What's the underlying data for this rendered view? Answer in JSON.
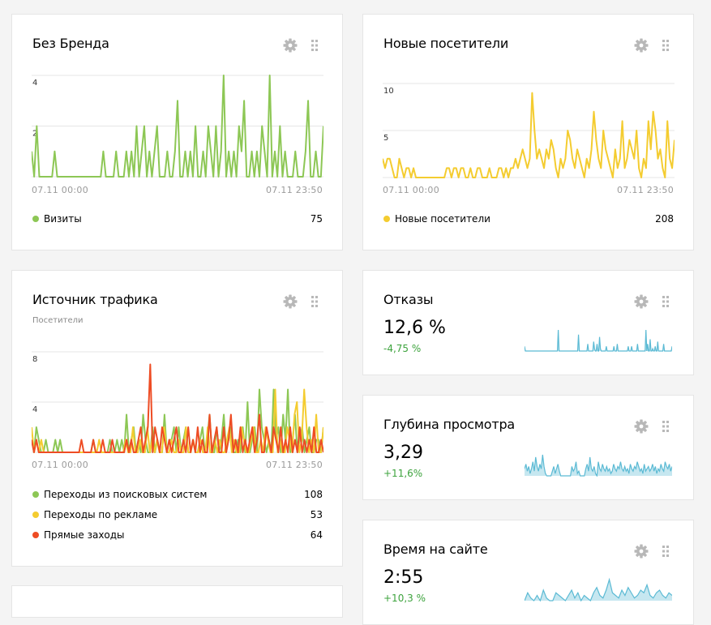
{
  "colors": {
    "green": "#8dc755",
    "yellow": "#f4cc30",
    "red": "#ee4c24",
    "blue": "#5bbad4",
    "delta_green": "#3da33d"
  },
  "icons": [
    "gear-icon",
    "drag-handle-icon"
  ],
  "widgets": {
    "brand": {
      "title": "Без Бренда",
      "x_start": "07.11 00:00",
      "x_end": "07.11 23:50",
      "legend": [
        {
          "label": "Визиты",
          "value": "75"
        }
      ]
    },
    "new_visitors": {
      "title": "Новые посетители",
      "x_start": "07.11 00:00",
      "x_end": "07.11 23:50",
      "legend": [
        {
          "label": "Новые посетители",
          "value": "208"
        }
      ]
    },
    "traffic": {
      "title": "Источник трафика",
      "subtitle": "Посетители",
      "x_start": "07.11 00:00",
      "x_end": "07.11 23:50",
      "legend": [
        {
          "label": "Переходы из поисковых систем",
          "value": "108"
        },
        {
          "label": "Переходы по рекламе",
          "value": "53"
        },
        {
          "label": "Прямые заходы",
          "value": "64"
        }
      ]
    },
    "bounce": {
      "title": "Отказы",
      "value": "12,6 %",
      "delta": "-4,75 %"
    },
    "depth": {
      "title": "Глубина просмотра",
      "value": "3,29",
      "delta": "+11,6%"
    },
    "time": {
      "title": "Время на сайте",
      "value": "2:55",
      "delta": "+10,3 %"
    }
  },
  "chart_data": [
    {
      "type": "line",
      "ylim": [
        0,
        4
      ],
      "yticks": [
        "2",
        "4"
      ],
      "x_labels": [
        "07.11 00:00",
        "07.11 23:50"
      ],
      "series": [
        {
          "name": "Визиты",
          "color": "#8dc755",
          "values": [
            1,
            0,
            2,
            0,
            0,
            0,
            0,
            0,
            0,
            1,
            0,
            0,
            0,
            0,
            0,
            0,
            0,
            0,
            0,
            0,
            0,
            0,
            0,
            0,
            0,
            0,
            0,
            0,
            1,
            0,
            0,
            0,
            0,
            1,
            0,
            0,
            0,
            1,
            0,
            1,
            0,
            2,
            0,
            1,
            2,
            0,
            1,
            0,
            1,
            2,
            0,
            0,
            0,
            1,
            0,
            0,
            1,
            3,
            0,
            0,
            1,
            0,
            1,
            0,
            2,
            0,
            0,
            1,
            0,
            2,
            1,
            0,
            2,
            0,
            1,
            4,
            0,
            1,
            0,
            1,
            0,
            2,
            1,
            3,
            0,
            0,
            1,
            0,
            1,
            0,
            2,
            1,
            0,
            4,
            0,
            1,
            0,
            2,
            0,
            1,
            0,
            0,
            0,
            1,
            0,
            0,
            0,
            1,
            3,
            0,
            0,
            1,
            0,
            0,
            2
          ]
        }
      ]
    },
    {
      "type": "line",
      "ylim": [
        0,
        10
      ],
      "yticks": [
        "5",
        "10"
      ],
      "x_labels": [
        "07.11 00:00",
        "07.11 23:50"
      ],
      "series": [
        {
          "name": "Новые посетители",
          "color": "#f4cc30",
          "values": [
            2,
            1,
            2,
            2,
            1,
            0,
            0,
            2,
            1,
            0,
            1,
            1,
            0,
            1,
            0,
            0,
            0,
            0,
            0,
            0,
            0,
            0,
            0,
            0,
            0,
            0,
            0,
            1,
            1,
            0,
            1,
            1,
            0,
            1,
            1,
            0,
            0,
            1,
            0,
            0,
            1,
            1,
            0,
            0,
            0,
            1,
            0,
            0,
            0,
            1,
            1,
            0,
            1,
            0,
            1,
            1,
            2,
            1,
            2,
            3,
            2,
            1,
            2,
            9,
            5,
            2,
            3,
            2,
            1,
            3,
            2,
            4,
            3,
            1,
            0,
            2,
            1,
            2,
            5,
            4,
            2,
            1,
            3,
            2,
            1,
            0,
            2,
            1,
            3,
            7,
            4,
            2,
            1,
            5,
            3,
            2,
            1,
            0,
            3,
            1,
            2,
            6,
            1,
            2,
            4,
            3,
            2,
            5,
            1,
            0,
            2,
            1,
            6,
            3,
            7,
            5,
            2,
            3,
            1,
            0,
            6,
            2,
            1,
            4
          ]
        }
      ]
    },
    {
      "type": "line",
      "ylim": [
        0,
        8
      ],
      "yticks": [
        "4",
        "8"
      ],
      "x_labels": [
        "07.11 00:00",
        "07.11 23:50"
      ],
      "series": [
        {
          "name": "Переходы из поисковых систем",
          "color": "#8dc755",
          "values": [
            1,
            0,
            2,
            1,
            0,
            0,
            1,
            0,
            0,
            0,
            1,
            0,
            1,
            0,
            0,
            0,
            0,
            0,
            0,
            0,
            0,
            0,
            0,
            0,
            0,
            0,
            1,
            0,
            0,
            0,
            0,
            0,
            0,
            1,
            0,
            0,
            1,
            0,
            1,
            0,
            3,
            0,
            1,
            2,
            0,
            1,
            0,
            3,
            1,
            0,
            0,
            2,
            0,
            1,
            0,
            0,
            3,
            0,
            1,
            1,
            2,
            0,
            2,
            0,
            1,
            2,
            0,
            0,
            1,
            0,
            0,
            1,
            2,
            0,
            1,
            3,
            0,
            0,
            2,
            0,
            1,
            3,
            0,
            1,
            2,
            0,
            0,
            1,
            0,
            2,
            0,
            4,
            0,
            1,
            2,
            0,
            5,
            2,
            1,
            0,
            1,
            0,
            5,
            1,
            2,
            0,
            3,
            1,
            5,
            0,
            1,
            3,
            0,
            1,
            2,
            0,
            1,
            2,
            0,
            0,
            1,
            1,
            0,
            2
          ]
        },
        {
          "name": "Переходы по рекламе",
          "color": "#f4cc30",
          "values": [
            2,
            0,
            1,
            0,
            1,
            0,
            0,
            0,
            0,
            0,
            0,
            0,
            0,
            0,
            0,
            0,
            0,
            0,
            0,
            0,
            0,
            0,
            0,
            0,
            0,
            0,
            0,
            0,
            1,
            0,
            0,
            0,
            0,
            0,
            0,
            0,
            0,
            0,
            0,
            1,
            0,
            0,
            2,
            0,
            0,
            1,
            0,
            0,
            2,
            0,
            1,
            0,
            1,
            0,
            0,
            2,
            0,
            0,
            1,
            0,
            0,
            1,
            0,
            0,
            2,
            0,
            0,
            1,
            0,
            0,
            1,
            0,
            0,
            2,
            0,
            0,
            1,
            0,
            1,
            0,
            0,
            1,
            2,
            0,
            1,
            0,
            0,
            2,
            1,
            0,
            0,
            1,
            2,
            0,
            0,
            1,
            0,
            2,
            1,
            0,
            0,
            5,
            0,
            1,
            0,
            0,
            2,
            1,
            0,
            3,
            4,
            0,
            1,
            5,
            2,
            0,
            1,
            0,
            3,
            0,
            0,
            2
          ]
        },
        {
          "name": "Прямые заходы",
          "color": "#ee4c24",
          "values": [
            1,
            0,
            1,
            0,
            0,
            0,
            0,
            0,
            0,
            0,
            0,
            0,
            0,
            0,
            0,
            0,
            0,
            0,
            0,
            0,
            0,
            1,
            0,
            0,
            0,
            0,
            1,
            0,
            0,
            0,
            1,
            0,
            0,
            0,
            1,
            0,
            0,
            0,
            0,
            0,
            1,
            0,
            1,
            0,
            0,
            1,
            2,
            0,
            1,
            2,
            7,
            0,
            2,
            1,
            0,
            2,
            1,
            0,
            1,
            0,
            1,
            2,
            0,
            0,
            1,
            0,
            2,
            0,
            1,
            0,
            2,
            0,
            1,
            0,
            0,
            3,
            0,
            1,
            2,
            0,
            0,
            2,
            0,
            1,
            3,
            0,
            1,
            0,
            2,
            0,
            1,
            0,
            1,
            2,
            0,
            1,
            3,
            0,
            0,
            2,
            1,
            0,
            2,
            1,
            0,
            2,
            0,
            1,
            0,
            2,
            0,
            1,
            0,
            2,
            0,
            1,
            0,
            1,
            0,
            2,
            0,
            0,
            1,
            0
          ]
        }
      ]
    },
    {
      "type": "area",
      "series": [
        {
          "name": "Отказы",
          "color": "#5bbad4",
          "values": [
            2,
            0,
            0,
            0,
            0,
            0,
            0,
            0,
            0,
            0,
            0,
            0,
            0,
            0,
            0,
            0,
            0,
            0,
            0,
            0,
            0,
            0,
            0,
            0,
            0,
            0,
            0,
            0,
            0,
            0,
            0,
            0,
            0,
            0,
            0,
            0,
            0,
            0,
            0,
            0,
            9,
            0,
            0,
            0,
            0,
            0,
            0,
            0,
            0,
            0,
            0,
            0,
            0,
            0,
            0,
            0,
            0,
            0,
            0,
            0,
            0,
            0,
            0,
            0,
            7,
            0,
            0,
            0,
            0,
            0,
            0,
            0,
            0,
            0,
            0,
            3,
            0,
            0,
            0,
            0,
            0,
            0,
            4,
            1,
            0,
            0,
            3,
            0,
            0,
            6,
            1,
            0,
            0,
            0,
            0,
            0,
            0,
            2,
            0,
            0,
            0,
            0,
            0,
            0,
            0,
            0,
            2,
            0,
            0,
            0,
            3,
            0,
            0,
            0,
            0,
            0,
            0,
            0,
            0,
            0,
            0,
            0,
            0,
            2,
            0,
            0,
            0,
            2,
            0,
            0,
            0,
            0,
            0,
            0,
            3,
            0,
            0,
            0,
            0,
            0,
            0,
            0,
            0,
            0,
            9,
            0,
            3,
            0,
            0,
            5,
            0,
            0,
            1,
            0,
            0,
            2,
            0,
            0,
            4,
            0,
            0,
            0,
            0,
            0,
            0,
            3,
            0,
            0,
            0,
            0,
            0,
            0,
            0,
            0,
            0,
            2
          ]
        }
      ]
    },
    {
      "type": "area",
      "series": [
        {
          "name": "Глубина просмотра",
          "color": "#5bbad4",
          "values": [
            3,
            5,
            2,
            4,
            1,
            3,
            6,
            2,
            8,
            4,
            2,
            5,
            3,
            9,
            4,
            1,
            0,
            0,
            0,
            0,
            2,
            4,
            1,
            3,
            5,
            2,
            0,
            0,
            0,
            0,
            0,
            0,
            0,
            0,
            4,
            2,
            3,
            6,
            1,
            2,
            0,
            0,
            0,
            0,
            3,
            5,
            2,
            8,
            3,
            2,
            4,
            1,
            0,
            6,
            3,
            2,
            5,
            3,
            2,
            4,
            2,
            3,
            1,
            2,
            5,
            3,
            2,
            4,
            3,
            6,
            3,
            2,
            4,
            2,
            3,
            1,
            5,
            3,
            2,
            4,
            3,
            6,
            4,
            2,
            3,
            1,
            5,
            2,
            3,
            4,
            2,
            3,
            5,
            2,
            4,
            1,
            3,
            2,
            5,
            3,
            2,
            6,
            4,
            3,
            5,
            2,
            4
          ]
        }
      ]
    },
    {
      "type": "area",
      "series": [
        {
          "name": "Время на сайте",
          "color": "#5bbad4",
          "values": [
            0,
            3,
            1,
            0,
            2,
            0,
            4,
            1,
            0,
            0,
            3,
            2,
            1,
            0,
            2,
            4,
            1,
            3,
            0,
            2,
            1,
            0,
            3,
            5,
            2,
            1,
            4,
            8,
            3,
            2,
            1,
            4,
            2,
            5,
            3,
            1,
            2,
            4,
            3,
            6,
            2,
            1,
            3,
            4,
            2,
            1,
            3,
            2
          ]
        }
      ]
    }
  ]
}
